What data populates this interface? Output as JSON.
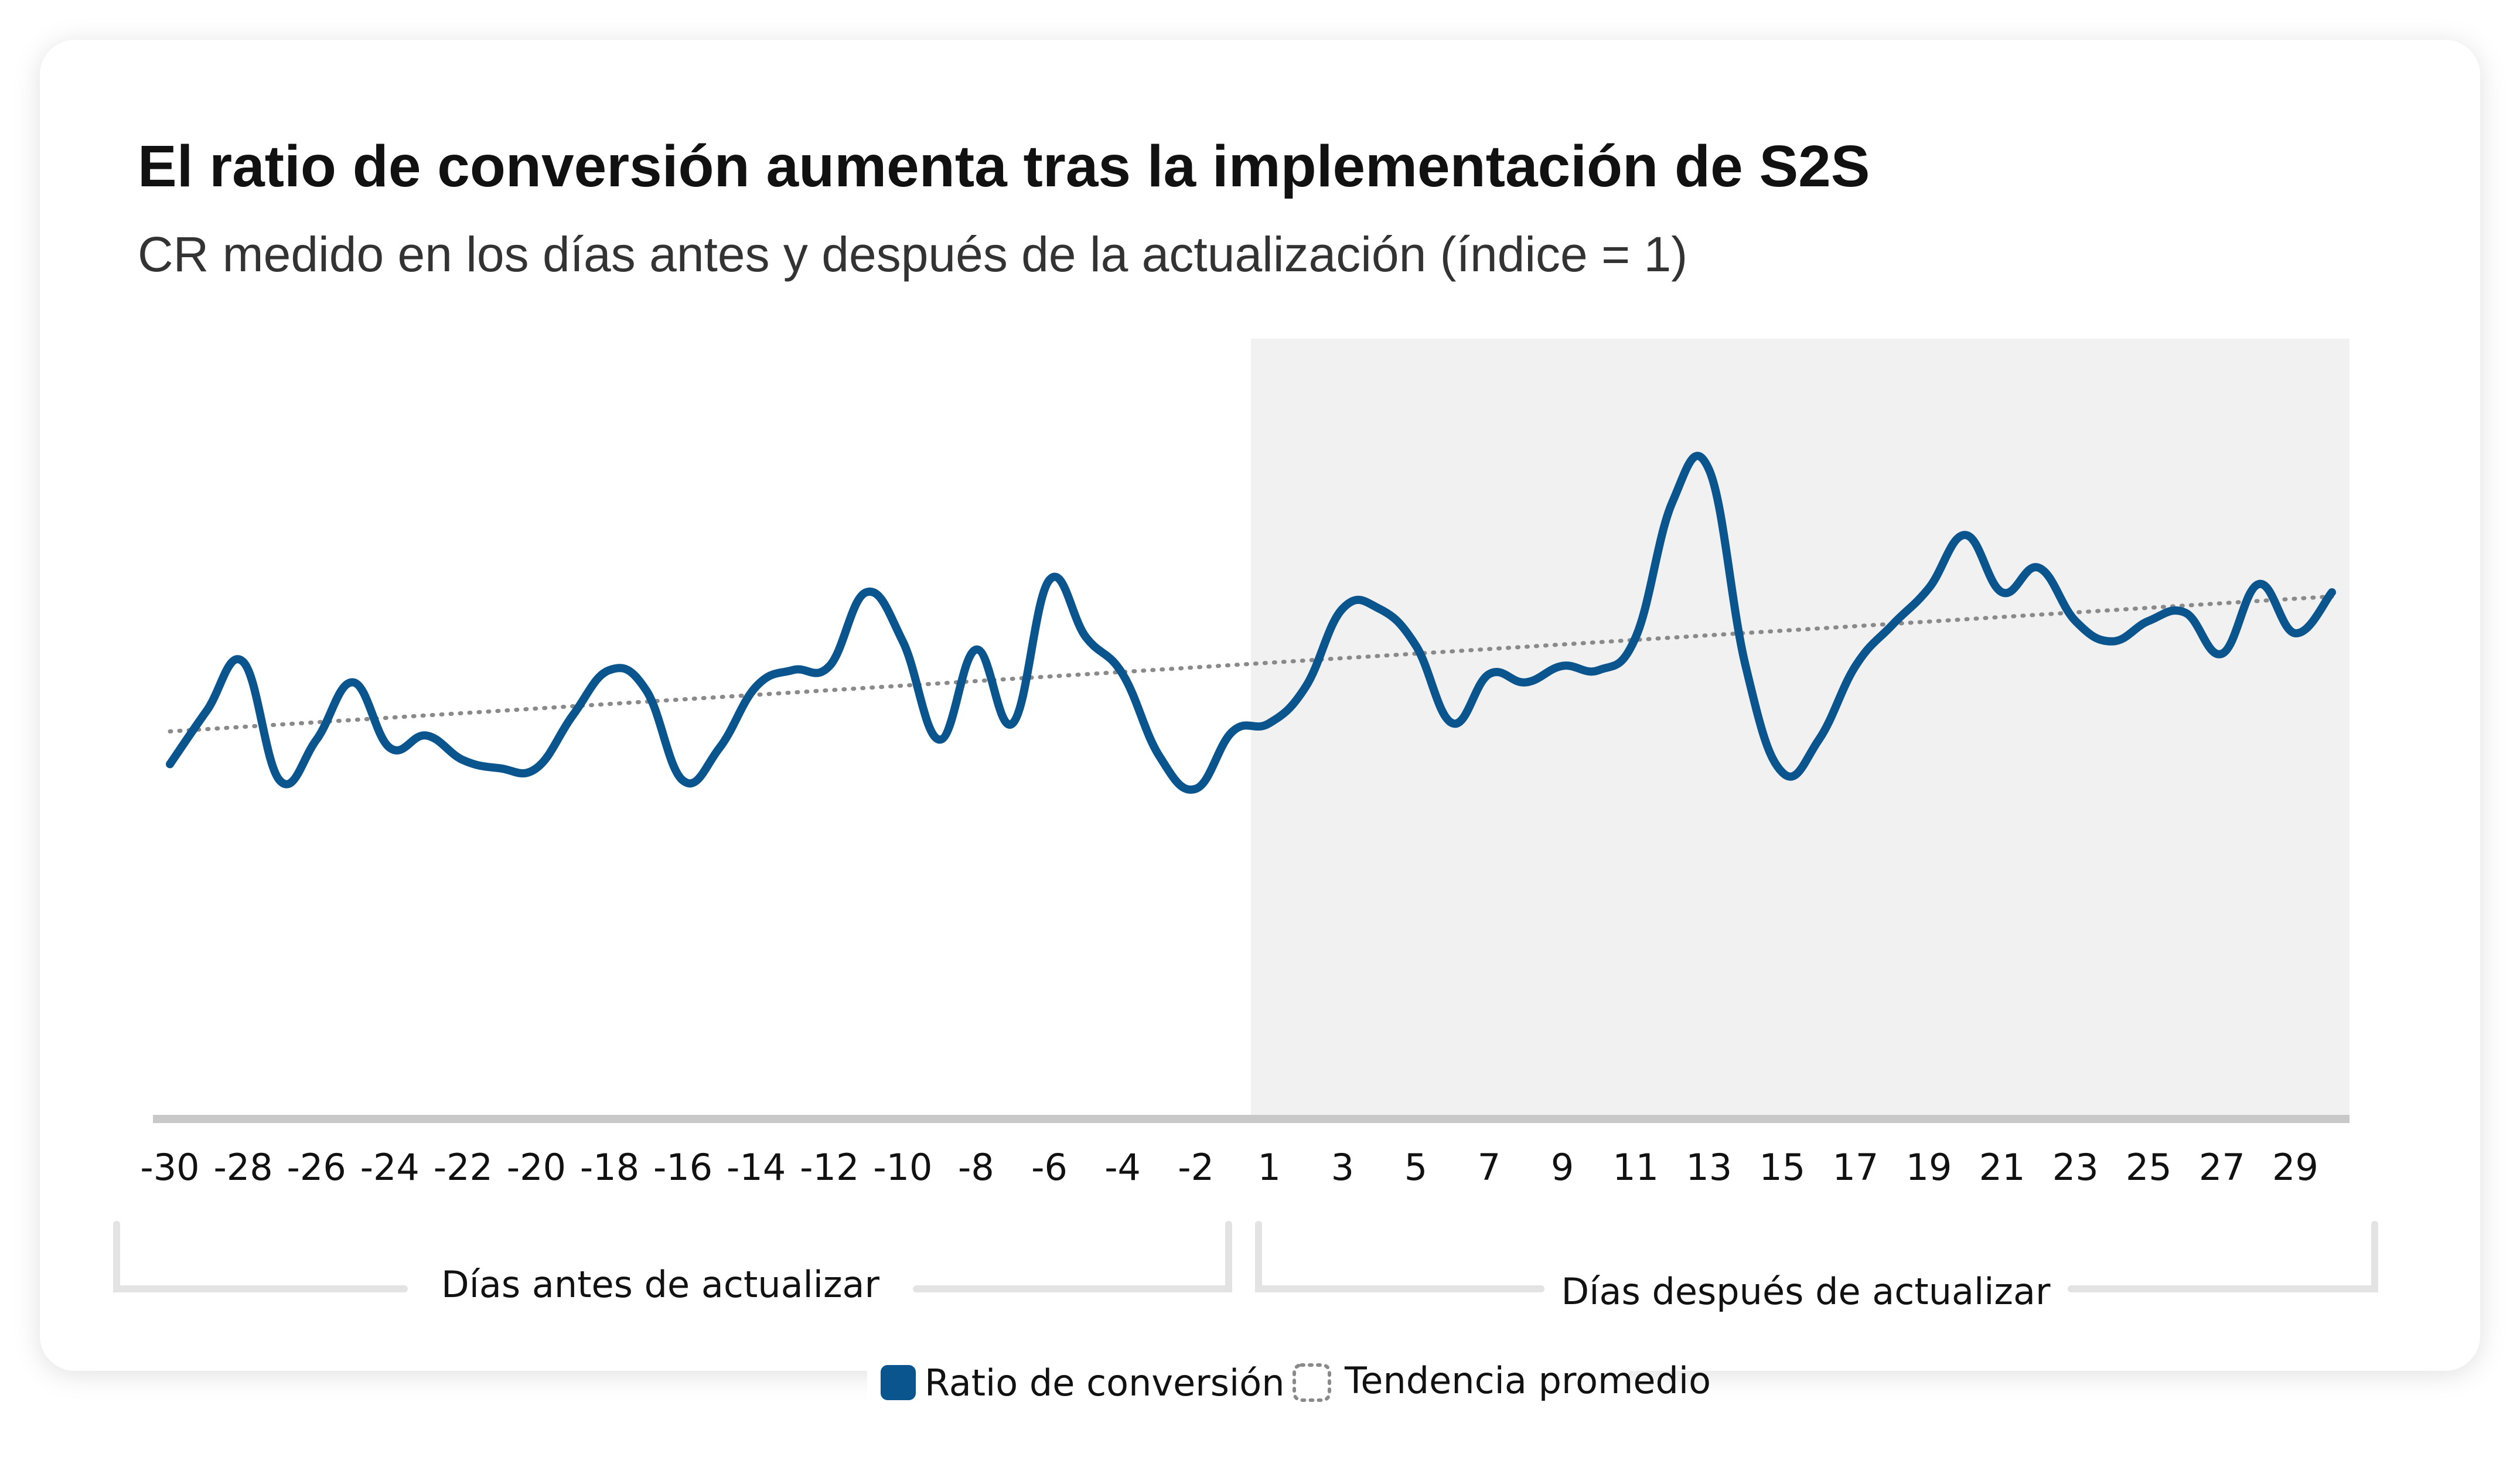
{
  "colors": {
    "series": "#0b558f",
    "trend": "#8a8a8a",
    "after_band": "#f1f1f1",
    "axis": "#c8c8c8",
    "bracket": "#e3e3e3"
  },
  "chart_data": {
    "type": "line",
    "title": "El ratio de conversión aumenta tras la implementación de S2S",
    "subtitle": "CR medido en los días antes y después de la actualización (índice = 1)",
    "xlabel": "",
    "ylabel": "",
    "grid": false,
    "legend_position": "bottom-center",
    "x": [
      -30,
      -29,
      -28,
      -27,
      -26,
      -25,
      -24,
      -23,
      -22,
      -21,
      -20,
      -19,
      -18,
      -17,
      -16,
      -15,
      -14,
      -13,
      -12,
      -11,
      -10,
      -9,
      -8,
      -7,
      -6,
      -5,
      -4,
      -3,
      -2,
      -1,
      1,
      2,
      3,
      4,
      5,
      6,
      7,
      8,
      9,
      10,
      11,
      12,
      13,
      14,
      15,
      16,
      17,
      18,
      19,
      20,
      21,
      22,
      23,
      24,
      25,
      26,
      27,
      28,
      29,
      30
    ],
    "x_tick_labels": [
      "-30",
      "-28",
      "-26",
      "-24",
      "-22",
      "-20",
      "-18",
      "-16",
      "-14",
      "-12",
      "-10",
      "-8",
      "-6",
      "-4",
      "-2",
      "1",
      "3",
      "5",
      "7",
      "9",
      "11",
      "13",
      "15",
      "17",
      "19",
      "21",
      "23",
      "25",
      "27",
      "29"
    ],
    "ylim": [
      0,
      1.9
    ],
    "series": [
      {
        "name": "Ratio de conversión",
        "values": [
          0.86,
          0.99,
          1.11,
          0.82,
          0.92,
          1.06,
          0.9,
          0.93,
          0.87,
          0.85,
          0.85,
          0.98,
          1.09,
          1.04,
          0.82,
          0.9,
          1.05,
          1.09,
          1.1,
          1.28,
          1.16,
          0.92,
          1.14,
          0.96,
          1.31,
          1.17,
          1.08,
          0.88,
          0.8,
          0.94,
          0.96,
          1.05,
          1.24,
          1.24,
          1.15,
          0.96,
          1.08,
          1.06,
          1.1,
          1.09,
          1.17,
          1.5,
          1.58,
          1.1,
          0.84,
          0.92,
          1.1,
          1.2,
          1.29,
          1.42,
          1.28,
          1.34,
          1.21,
          1.16,
          1.21,
          1.23,
          1.13,
          1.3,
          1.18,
          1.28
        ]
      },
      {
        "name": "Tendencia promedio",
        "style": "dotted",
        "values_at_ends": [
          0.94,
          1.27
        ]
      }
    ],
    "shaded_region": {
      "from": 1,
      "to": 30,
      "label": "Días después de actualizar"
    }
  },
  "periods": {
    "before_label": "Días antes de actualizar",
    "after_label": "Días después de actualizar"
  },
  "legend": {
    "series_label": "Ratio de conversión",
    "trend_label": "Tendencia promedio"
  }
}
